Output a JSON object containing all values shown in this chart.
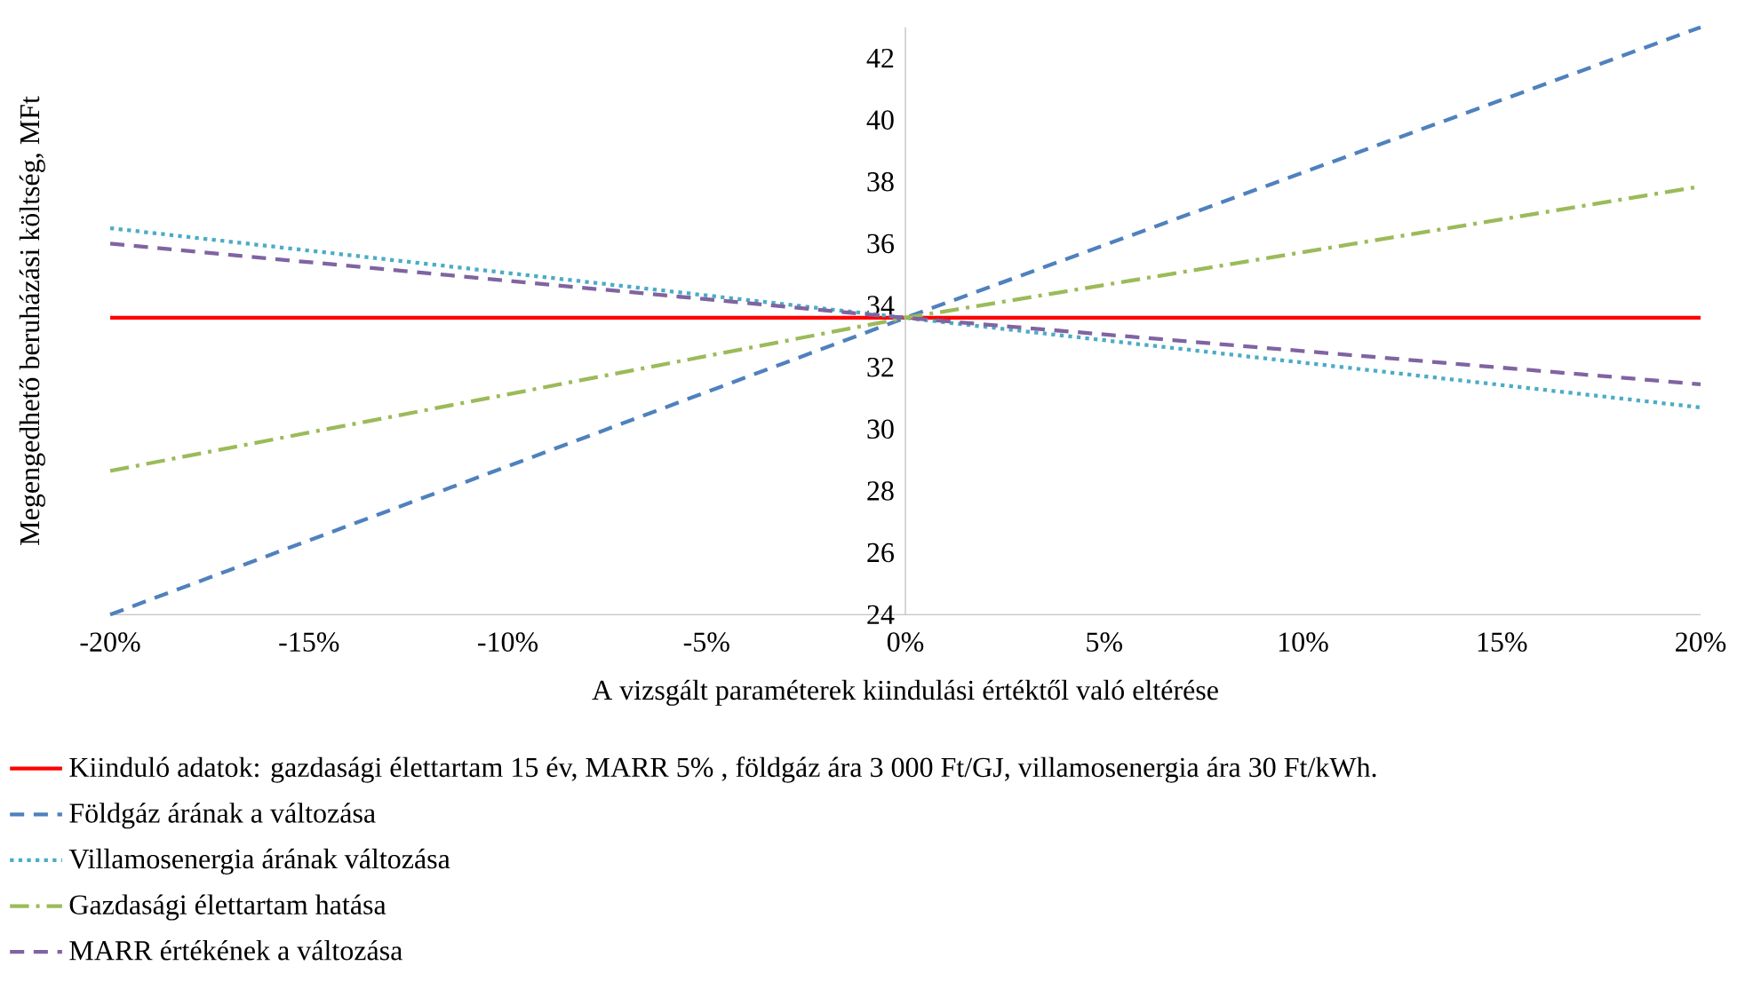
{
  "chart_data": {
    "type": "line",
    "xlabel": "A vizsgált paraméterek kiindulási értéktől való eltérése",
    "ylabel": "Megengedhető beruházási költség, MFt",
    "x": [
      -20,
      0,
      20
    ],
    "series": [
      {
        "name": "Kiinduló adatok: gazdasági élettartam 15 év, MARR 5% , földgáz ára 3 000 Ft/GJ, villamosenergia ára 30 Ft/kWh.",
        "color": "#ff0000",
        "line_style": "solid",
        "values": [
          33.6,
          33.6,
          33.6
        ]
      },
      {
        "name": "Földgáz árának a változása",
        "color": "#4f81bd",
        "line_style": "dashed",
        "values": [
          24.0,
          33.6,
          43.0
        ]
      },
      {
        "name": "Villamosenergia árának változása",
        "color": "#4bacc6",
        "line_style": "dotted",
        "values": [
          36.5,
          33.6,
          30.7
        ]
      },
      {
        "name": "Gazdasági élettartam hatása",
        "color": "#9bbb59",
        "line_style": "dashdot",
        "values": [
          28.65,
          33.6,
          37.85
        ]
      },
      {
        "name": "MARR értékének a változása",
        "color": "#8064a2",
        "line_style": "dashed",
        "values": [
          36.0,
          33.6,
          31.45
        ]
      }
    ],
    "xlim": [
      -20,
      20
    ],
    "ylim": [
      24,
      43
    ],
    "xticks": [
      {
        "value": -20,
        "label": "-20%"
      },
      {
        "value": -15,
        "label": "-15%"
      },
      {
        "value": -10,
        "label": "-10%"
      },
      {
        "value": -5,
        "label": "-5%"
      },
      {
        "value": 0,
        "label": "0%"
      },
      {
        "value": 5,
        "label": "5%"
      },
      {
        "value": 10,
        "label": "10%"
      },
      {
        "value": 15,
        "label": "15%"
      },
      {
        "value": 20,
        "label": "20%"
      }
    ],
    "yticks": [
      24,
      26,
      28,
      30,
      32,
      34,
      36,
      38,
      40,
      42
    ],
    "legend": "bottom",
    "marker": "none",
    "grid": false
  }
}
